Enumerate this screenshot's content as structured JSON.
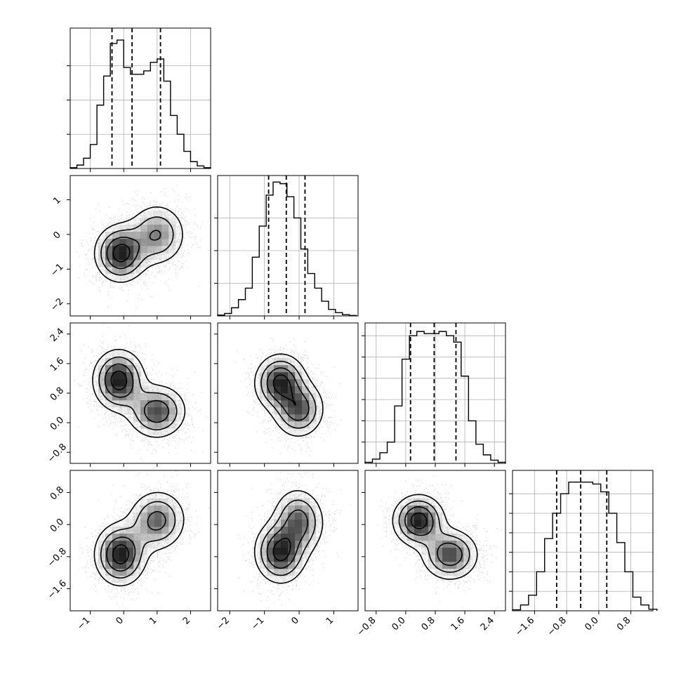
{
  "chart_data": {
    "type": "corner",
    "title": "",
    "n_params": 4,
    "grid_on": true,
    "colors": {
      "line": "#000000",
      "grid": "#b0b0b0",
      "points": "#808080",
      "density": "#000000"
    },
    "params": [
      {
        "label": "",
        "range": [
          -1.6,
          2.6
        ],
        "ticks": [
          -1,
          0,
          1,
          2
        ],
        "tick_labels": [
          "−1",
          "0",
          "1",
          "2"
        ]
      },
      {
        "label": "",
        "range": [
          -2.35,
          1.7
        ],
        "ticks": [
          -2,
          -1,
          0,
          1
        ],
        "tick_labels": [
          "−2",
          "−1",
          "0",
          "1"
        ]
      },
      {
        "label": "",
        "range": [
          -1.1,
          2.7
        ],
        "ticks": [
          -0.8,
          0.0,
          0.8,
          1.6,
          2.4
        ],
        "tick_labels": [
          "−0.8",
          "0.0",
          "0.8",
          "1.6",
          "2.4"
        ]
      },
      {
        "label": "",
        "range": [
          -2.15,
          1.35
        ],
        "ticks": [
          -1.6,
          -0.8,
          0.0,
          0.8
        ],
        "tick_labels": [
          "−1.6",
          "−0.8",
          "0.0",
          "0.8"
        ]
      }
    ],
    "histograms": [
      {
        "param": 0,
        "bin_edges": [
          -1.6,
          -1.4,
          -1.2,
          -1.0,
          -0.8,
          -0.6,
          -0.4,
          -0.2,
          0.0,
          0.2,
          0.4,
          0.6,
          0.8,
          1.0,
          1.2,
          1.4,
          1.6,
          1.8,
          2.0,
          2.2,
          2.4,
          2.6
        ],
        "counts": [
          0.005,
          0.02,
          0.06,
          0.14,
          0.37,
          0.54,
          0.73,
          0.75,
          0.59,
          0.55,
          0.55,
          0.57,
          0.62,
          0.64,
          0.51,
          0.31,
          0.2,
          0.1,
          0.04,
          0.015,
          0.005
        ],
        "ymax": 0.82,
        "ticks": [
          0.2,
          0.4,
          0.6
        ],
        "quantiles": [
          -0.35,
          0.25,
          1.1
        ]
      },
      {
        "param": 1,
        "bin_edges": [
          -2.35,
          -2.15,
          -1.95,
          -1.75,
          -1.55,
          -1.35,
          -1.15,
          -0.95,
          -0.75,
          -0.55,
          -0.35,
          -0.15,
          0.05,
          0.25,
          0.45,
          0.65,
          0.85,
          1.05,
          1.25,
          1.45,
          1.65
        ],
        "counts": [
          0.005,
          0.015,
          0.05,
          0.1,
          0.17,
          0.36,
          0.55,
          0.74,
          0.82,
          0.81,
          0.73,
          0.6,
          0.41,
          0.26,
          0.17,
          0.09,
          0.04,
          0.02,
          0.008,
          0.003
        ],
        "ymax": 0.86,
        "ticks": [
          0.2,
          0.4,
          0.6
        ],
        "quantiles": [
          -0.88,
          -0.37,
          0.17
        ]
      },
      {
        "param": 2,
        "bin_edges": [
          -1.1,
          -0.9,
          -0.7,
          -0.5,
          -0.3,
          -0.1,
          0.1,
          0.3,
          0.5,
          0.7,
          0.9,
          1.1,
          1.3,
          1.5,
          1.7,
          1.9,
          2.1,
          2.3,
          2.5,
          2.7
        ],
        "counts": [
          0.005,
          0.02,
          0.05,
          0.1,
          0.27,
          0.49,
          0.6,
          0.62,
          0.61,
          0.61,
          0.62,
          0.6,
          0.57,
          0.41,
          0.2,
          0.09,
          0.04,
          0.015,
          0.005
        ],
        "ymax": 0.66,
        "ticks": [
          0.1,
          0.2,
          0.3,
          0.4,
          0.5,
          0.6
        ],
        "quantiles": [
          0.13,
          0.77,
          1.36
        ]
      },
      {
        "param": 3,
        "bin_edges": [
          -2.15,
          -1.95,
          -1.75,
          -1.55,
          -1.35,
          -1.15,
          -0.95,
          -0.75,
          -0.55,
          -0.35,
          -0.15,
          0.05,
          0.25,
          0.45,
          0.65,
          0.85,
          1.05,
          1.25,
          1.45
        ],
        "counts": [
          0.005,
          0.03,
          0.08,
          0.2,
          0.37,
          0.5,
          0.6,
          0.66,
          0.66,
          0.66,
          0.65,
          0.61,
          0.5,
          0.35,
          0.2,
          0.07,
          0.03,
          0.008
        ],
        "ymax": 0.72,
        "ticks": [
          0.1,
          0.2,
          0.3,
          0.4,
          0.5,
          0.6
        ],
        "quantiles": [
          -1.05,
          -0.45,
          0.2
        ]
      }
    ],
    "joint": [
      {
        "x": 0,
        "y": 1,
        "modes": [
          {
            "mx": -0.1,
            "my": -0.55,
            "sx": 0.42,
            "sy": 0.45,
            "w": 0.55,
            "rot": 0.05
          },
          {
            "mx": 1.0,
            "my": 0.0,
            "sx": 0.48,
            "sy": 0.5,
            "w": 0.45,
            "rot": 0.05
          }
        ]
      },
      {
        "x": 0,
        "y": 2,
        "modes": [
          {
            "mx": -0.15,
            "my": 1.15,
            "sx": 0.42,
            "sy": 0.45,
            "w": 0.55,
            "rot": 0.0
          },
          {
            "mx": 1.0,
            "my": 0.3,
            "sx": 0.48,
            "sy": 0.4,
            "w": 0.45,
            "rot": 0.05
          }
        ]
      },
      {
        "x": 0,
        "y": 3,
        "modes": [
          {
            "mx": -0.1,
            "my": -0.75,
            "sx": 0.42,
            "sy": 0.42,
            "w": 0.55,
            "rot": 0.1
          },
          {
            "mx": 1.0,
            "my": 0.1,
            "sx": 0.48,
            "sy": 0.42,
            "w": 0.45,
            "rot": 0.1
          }
        ]
      },
      {
        "x": 1,
        "y": 2,
        "modes": [
          {
            "mx": -0.55,
            "my": 1.1,
            "sx": 0.4,
            "sy": 0.42,
            "w": 0.55,
            "rot": -0.35
          },
          {
            "mx": 0.0,
            "my": 0.35,
            "sx": 0.4,
            "sy": 0.42,
            "w": 0.45,
            "rot": -0.35
          }
        ]
      },
      {
        "x": 1,
        "y": 3,
        "modes": [
          {
            "mx": -0.55,
            "my": -0.7,
            "sx": 0.4,
            "sy": 0.42,
            "w": 0.55,
            "rot": 0.3
          },
          {
            "mx": 0.0,
            "my": 0.1,
            "sx": 0.4,
            "sy": 0.45,
            "w": 0.45,
            "rot": 0.3
          }
        ]
      },
      {
        "x": 2,
        "y": 3,
        "modes": [
          {
            "mx": 0.35,
            "my": 0.1,
            "sx": 0.38,
            "sy": 0.35,
            "w": 0.52,
            "rot": 0.0
          },
          {
            "mx": 1.2,
            "my": -0.75,
            "sx": 0.42,
            "sy": 0.35,
            "w": 0.48,
            "rot": 0.0
          }
        ]
      }
    ]
  }
}
